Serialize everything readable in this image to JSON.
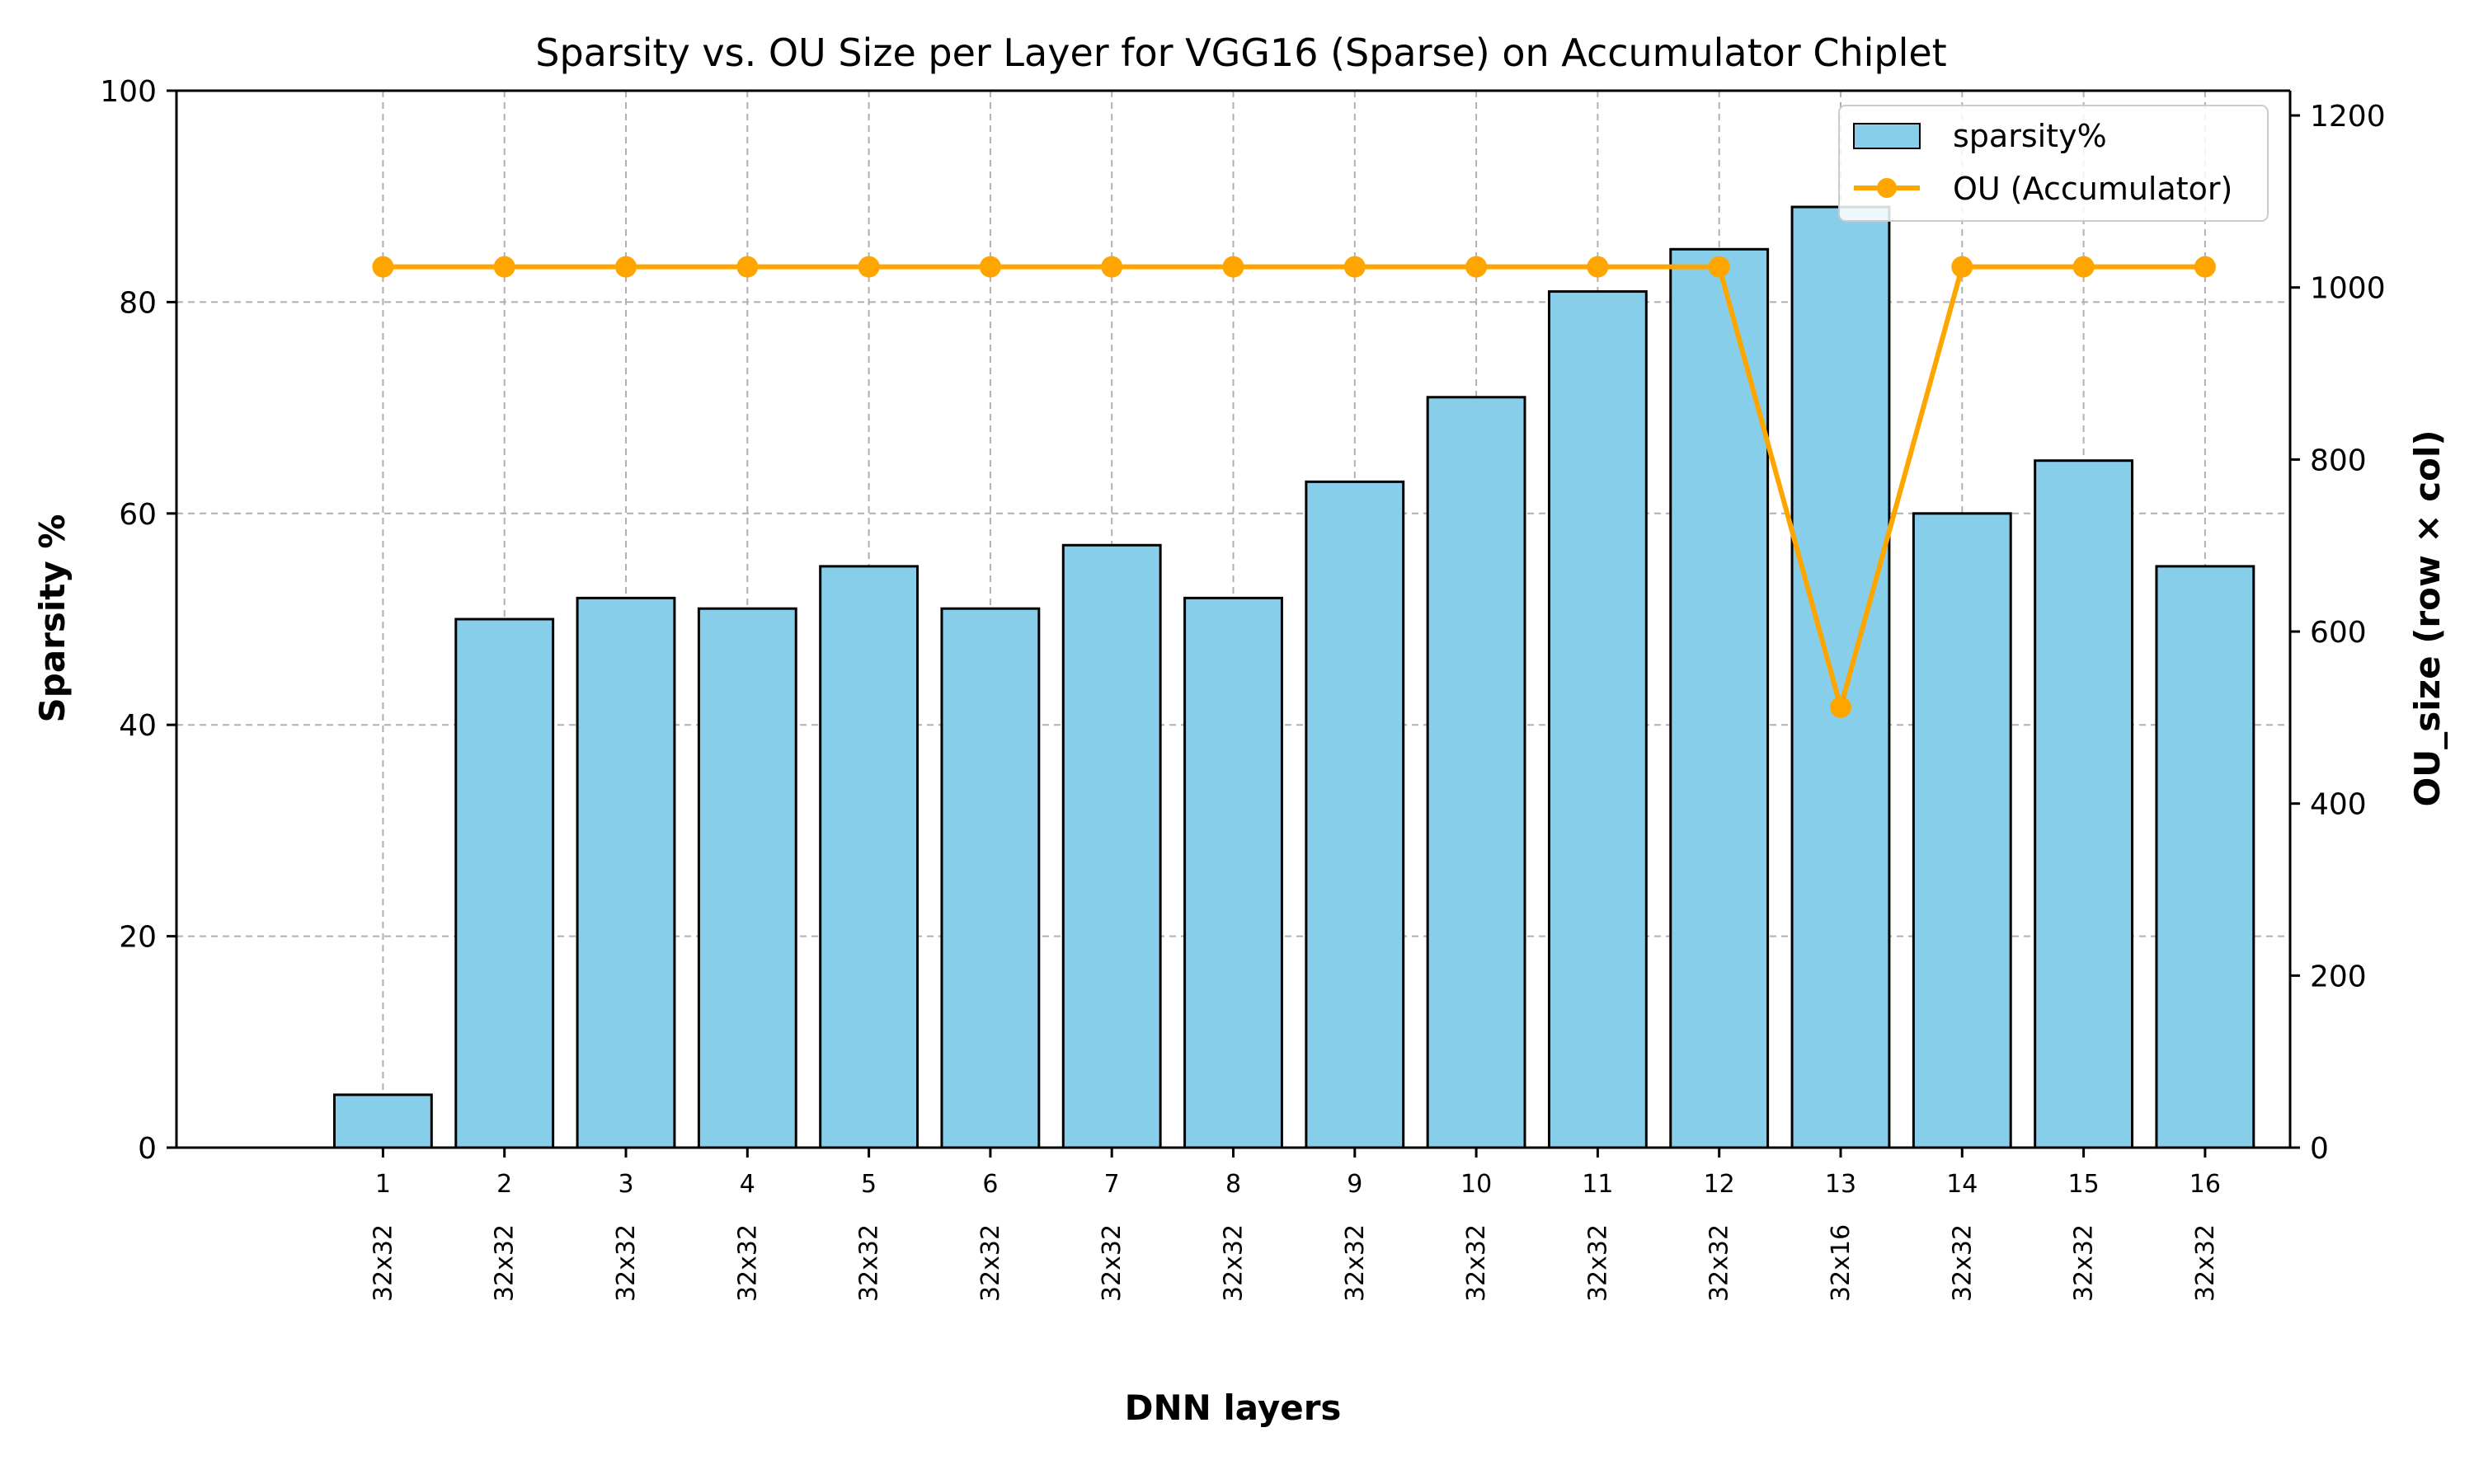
{
  "chart_data": {
    "type": "bar",
    "title": "Sparsity vs. OU Size per Layer for VGG16 (Sparse) on Accumulator Chiplet",
    "xlabel": "DNN layers",
    "ylabel": "Sparsity %",
    "y2label": "OU_size (row × col)",
    "categories": [
      "1",
      "2",
      "3",
      "4",
      "5",
      "6",
      "7",
      "8",
      "9",
      "10",
      "11",
      "12",
      "13",
      "14",
      "15",
      "16"
    ],
    "ou_labels": [
      "32x32",
      "32x32",
      "32x32",
      "32x32",
      "32x32",
      "32x32",
      "32x32",
      "32x32",
      "32x32",
      "32x32",
      "32x32",
      "32x32",
      "32x16",
      "32x32",
      "32x32",
      "32x32"
    ],
    "series": [
      {
        "name": "sparsity%",
        "kind": "bar",
        "axis": "left",
        "color": "#87CEEB",
        "values": [
          5,
          50,
          52,
          51,
          55,
          51,
          57,
          52,
          63,
          71,
          81,
          85,
          89,
          60,
          65,
          55
        ]
      },
      {
        "name": "OU (Accumulator)",
        "kind": "line",
        "axis": "right",
        "color": "#FFA500",
        "values": [
          1024,
          1024,
          1024,
          1024,
          1024,
          1024,
          1024,
          1024,
          1024,
          1024,
          1024,
          1024,
          512,
          1024,
          1024,
          1024
        ]
      }
    ],
    "ylim": [
      0,
      100
    ],
    "y_ticks": [
      0,
      20,
      40,
      60,
      80,
      100
    ],
    "y2lim": [
      0,
      1228.8
    ],
    "y2_ticks": [
      0,
      200,
      400,
      600,
      800,
      1000,
      1200
    ],
    "grid": true,
    "legend_position": "top-right"
  }
}
